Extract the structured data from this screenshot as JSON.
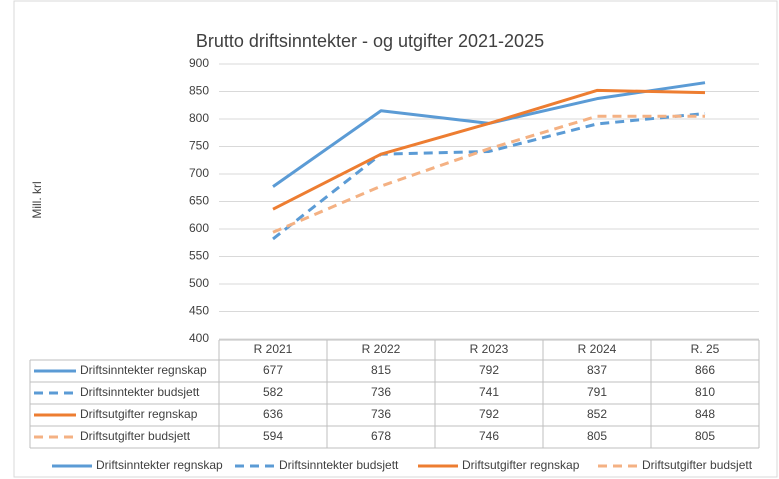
{
  "chart_data": {
    "type": "line",
    "title": "Brutto driftsinntekter - og utgifter 2021-2025",
    "y_label": "Mill. krl",
    "categories": [
      "R 2021",
      "R 2022",
      "R 2023",
      "R 2024",
      "R. 25"
    ],
    "ylim": [
      400,
      900
    ],
    "yticks": [
      400,
      450,
      500,
      550,
      600,
      650,
      700,
      750,
      800,
      850,
      900
    ],
    "grid": true,
    "legend": "bottom",
    "data_table": true,
    "series": [
      {
        "name": "Driftsinntekter regnskap",
        "color": "#5b9bd5",
        "style": "solid",
        "values": [
          677,
          815,
          792,
          837,
          866
        ]
      },
      {
        "name": "Driftsinntekter budsjett",
        "color": "#5b9bd5",
        "style": "dashed",
        "values": [
          582,
          736,
          741,
          791,
          810
        ]
      },
      {
        "name": "Driftsutgifter regnskap",
        "color": "#ed7d31",
        "style": "solid",
        "values": [
          636,
          736,
          792,
          852,
          848
        ]
      },
      {
        "name": "Driftsutgifter budsjett",
        "color": "#f4b183",
        "style": "dashed",
        "values": [
          594,
          678,
          746,
          805,
          805
        ]
      }
    ]
  }
}
